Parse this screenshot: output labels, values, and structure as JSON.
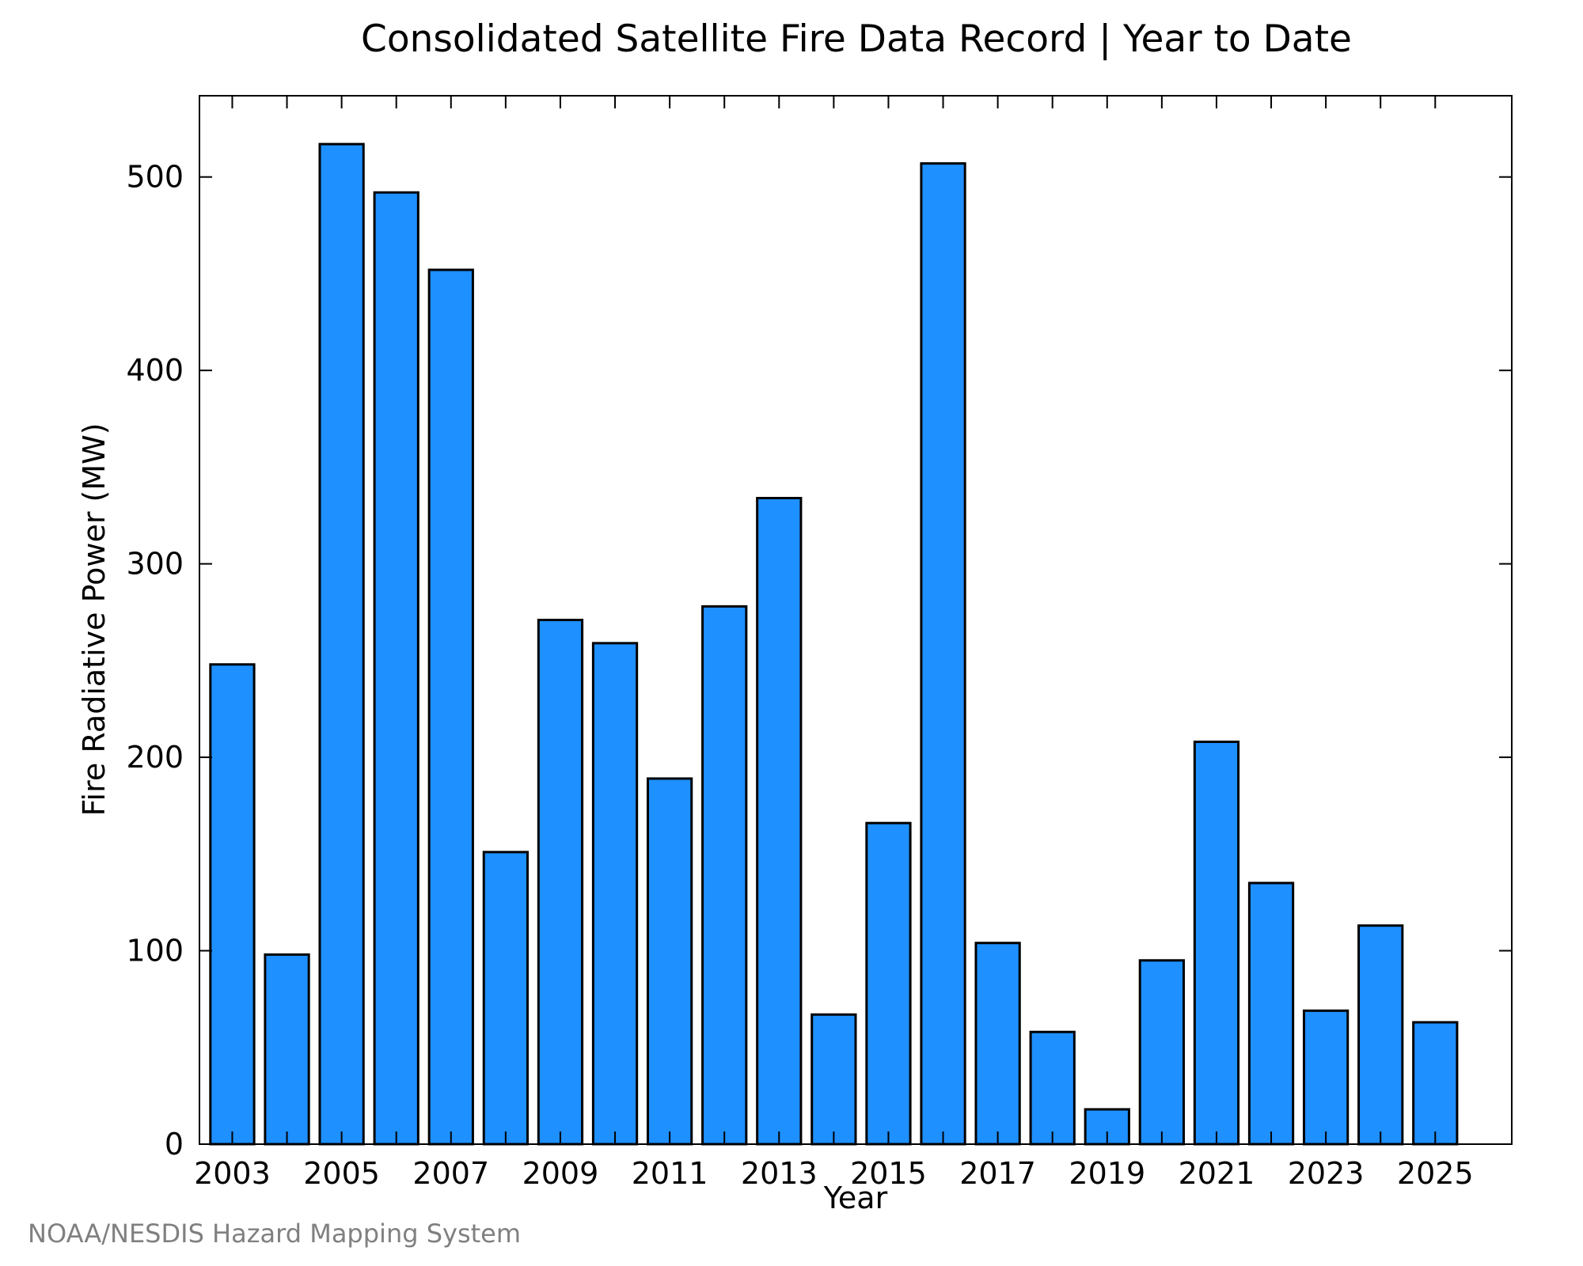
{
  "colors": {
    "bar_fill": "#1e90ff",
    "bar_stroke": "#000000",
    "axis": "#000000",
    "credit": "#808080"
  },
  "credit": "NOAA/NESDIS Hazard Mapping System",
  "chart_data": {
    "type": "bar",
    "title": "Consolidated Satellite Fire Data Record | Year to Date",
    "xlabel": "Year",
    "ylabel": "Fire Radiative Power (MW)",
    "categories": [
      2003,
      2004,
      2005,
      2006,
      2007,
      2008,
      2009,
      2010,
      2011,
      2012,
      2013,
      2014,
      2015,
      2016,
      2017,
      2018,
      2019,
      2020,
      2021,
      2022,
      2023,
      2024,
      2025
    ],
    "values": [
      248,
      98,
      517,
      492,
      452,
      151,
      271,
      259,
      189,
      278,
      334,
      67,
      166,
      507,
      104,
      58,
      18,
      95,
      208,
      135,
      69,
      113,
      63
    ],
    "x_tick_labels": [
      "2003",
      "2005",
      "2007",
      "2009",
      "2011",
      "2013",
      "2015",
      "2017",
      "2019",
      "2021",
      "2023",
      "2025"
    ],
    "y_ticks": [
      0,
      100,
      200,
      300,
      400,
      500
    ],
    "xlim": [
      2002.4,
      2026.4
    ],
    "ylim": [
      0,
      542
    ],
    "grid": false,
    "legend": "none"
  }
}
